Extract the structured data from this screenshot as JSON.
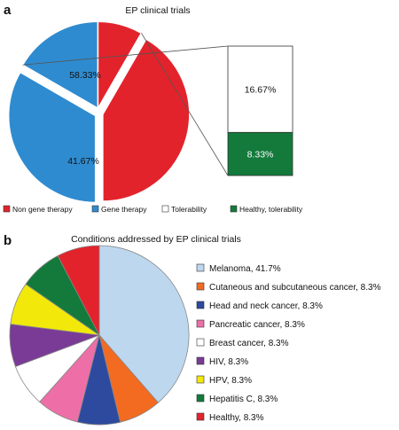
{
  "chart_data": [
    {
      "panel_letter": "a",
      "type": "pie",
      "title": "EP clinical trials",
      "slices": [
        {
          "name": "Gene therapy",
          "value": 58.33,
          "label": "58.33%",
          "color": "#2f8bcf"
        },
        {
          "name": "Non gene therapy",
          "value": 41.67,
          "label": "41.67%",
          "color": "#e3232c"
        }
      ],
      "breakdown_of": "Gene therapy",
      "breakdown": [
        {
          "name": "Tolerability",
          "value": 16.67,
          "label": "16.67%",
          "color": "#ffffff"
        },
        {
          "name": "Healthy, tolerability",
          "value": 8.33,
          "label": "8.33%",
          "color": "#137a3b"
        }
      ],
      "legend": [
        {
          "label": "Non gene therapy",
          "color": "#e3232c"
        },
        {
          "label": "Gene therapy",
          "color": "#2f8bcf"
        },
        {
          "label": "Tolerability",
          "color": "#ffffff"
        },
        {
          "label": "Healthy, tolerability",
          "color": "#137a3b"
        }
      ],
      "legend_placement": "bottom"
    },
    {
      "panel_letter": "b",
      "type": "pie",
      "title": "Conditions addressed by EP clinical trials",
      "slices": [
        {
          "name": "Melanoma",
          "value": 41.7,
          "label": "Melanoma, 41.7%",
          "color": "#bdd7ee"
        },
        {
          "name": "Cutaneous and subcutaneous cancer",
          "value": 8.3,
          "label": "Cutaneous and subcutaneous cancer, 8.3%",
          "color": "#f26b21"
        },
        {
          "name": "Head and neck cancer",
          "value": 8.3,
          "label": "Head and neck cancer, 8.3%",
          "color": "#2e4a9e"
        },
        {
          "name": "Pancreatic cancer",
          "value": 8.3,
          "label": "Pancreatic cancer, 8.3%",
          "color": "#ee6fa7"
        },
        {
          "name": "Breast cancer",
          "value": 8.3,
          "label": "Breast cancer, 8.3%",
          "color": "#ffffff"
        },
        {
          "name": "HIV",
          "value": 8.3,
          "label": "HIV, 8.3%",
          "color": "#7a3b96"
        },
        {
          "name": "HPV",
          "value": 8.3,
          "label": "HPV, 8.3%",
          "color": "#f2e90a"
        },
        {
          "name": "Hepatitis C",
          "value": 8.3,
          "label": "Hepatitis C, 8.3%",
          "color": "#137a3b"
        },
        {
          "name": "Healthy",
          "value": 8.3,
          "label": "Healthy, 8.3%",
          "color": "#e3232c"
        }
      ],
      "legend_placement": "right"
    }
  ]
}
